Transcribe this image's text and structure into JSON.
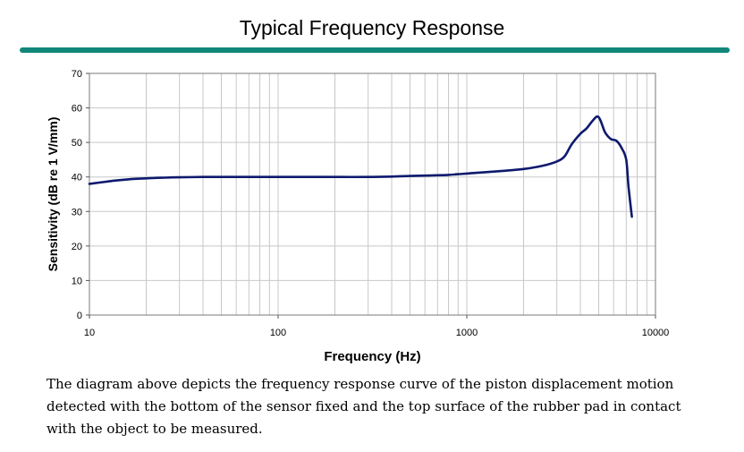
{
  "page": {
    "title": "Typical Frequency Response",
    "description": "The diagram above depicts the frequency response curve of the piston displacement motion detected with the bottom of the sensor fixed and the top surface of the rubber pad in contact with the object to be measured.",
    "colors": {
      "title_rule": "#11877a",
      "curve": "#0d1a6e",
      "grid": "#c8c8c8"
    }
  },
  "chart_data": {
    "type": "line",
    "title": "Typical Frequency Response",
    "xlabel": "Frequency (Hz)",
    "ylabel": "Sensitivity (dB re 1 V/mm)",
    "xscale": "log",
    "xlim": [
      10,
      10000
    ],
    "ylim": [
      0,
      70
    ],
    "xticks": [
      10,
      100,
      1000,
      10000
    ],
    "xtick_labels": [
      "10",
      "100",
      "1000",
      "10000"
    ],
    "yticks": [
      0,
      10,
      20,
      30,
      40,
      50,
      60,
      70
    ],
    "ytick_labels": [
      "0",
      "10",
      "20",
      "30",
      "40",
      "50",
      "60",
      "70"
    ],
    "grid": true,
    "legend": "none",
    "series": [
      {
        "x": [
          10,
          13,
          16,
          20,
          25,
          30,
          40,
          50,
          70,
          100,
          150,
          200,
          300,
          400,
          500,
          600,
          700,
          800,
          900,
          1000,
          1200,
          1500,
          2000,
          2500,
          3000,
          3300,
          3600,
          4000,
          4300,
          4600,
          4900,
          5100,
          5400,
          5800,
          6200,
          6600,
          7000,
          7200,
          7500
        ],
        "y": [
          38.0,
          38.8,
          39.3,
          39.6,
          39.8,
          39.9,
          40.0,
          40.0,
          40.0,
          40.0,
          40.0,
          40.0,
          40.0,
          40.1,
          40.3,
          40.4,
          40.5,
          40.6,
          40.8,
          41.0,
          41.3,
          41.7,
          42.3,
          43.2,
          44.5,
          46.0,
          49.5,
          52.5,
          54.0,
          56.0,
          57.5,
          56.5,
          53.0,
          51.0,
          50.5,
          48.5,
          45.0,
          37.0,
          28.5
        ]
      }
    ]
  }
}
